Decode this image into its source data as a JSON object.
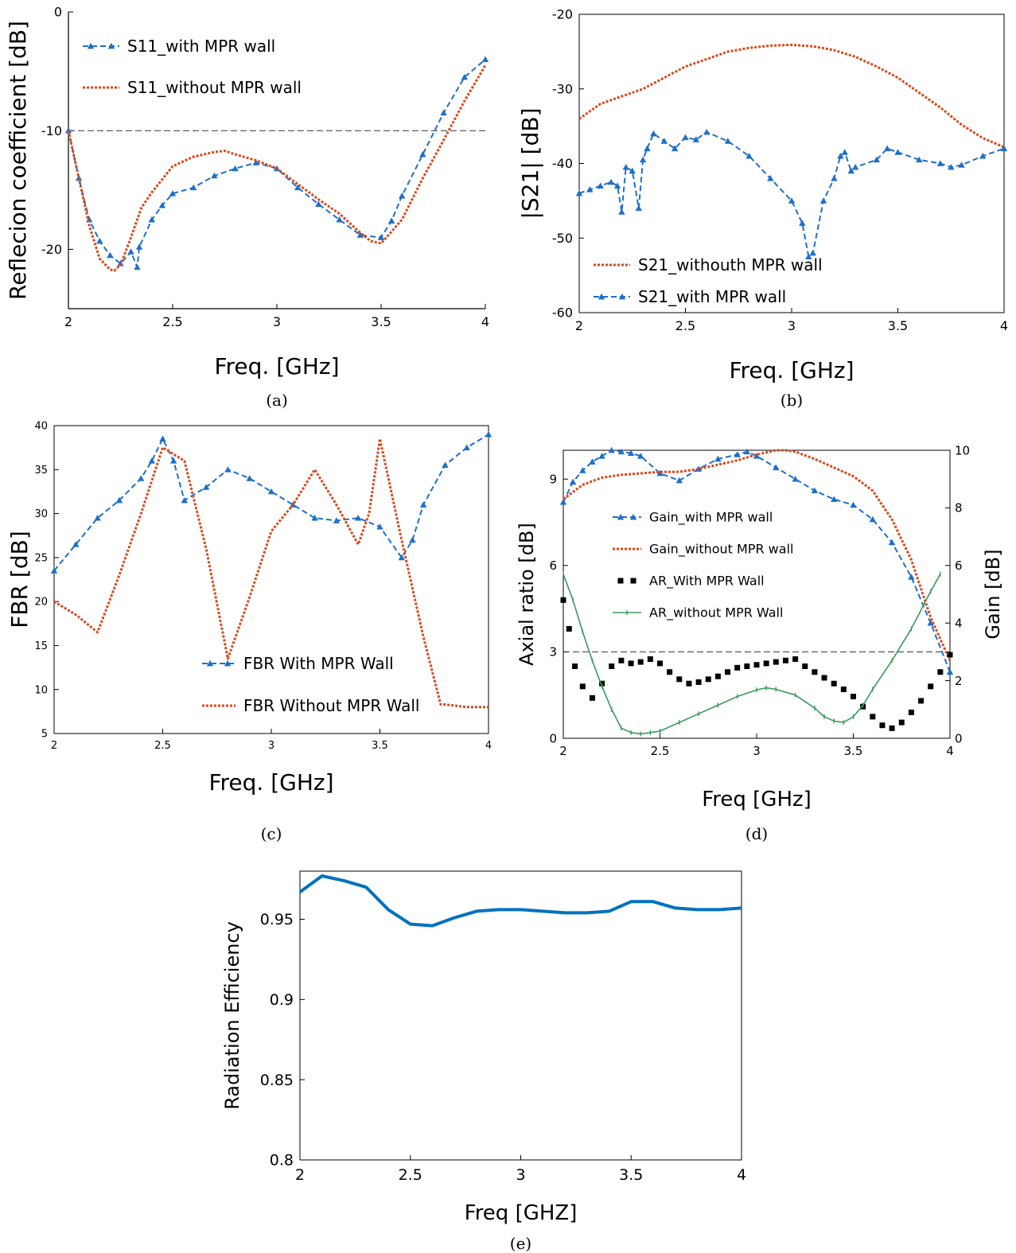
{
  "colors": {
    "blue": "#1f6fc9",
    "orange": "#d9481c",
    "black": "#000000",
    "green": "#3a9a5c",
    "matlab_blue": "#0072bd"
  },
  "chart_data": [
    {
      "id": "a",
      "type": "line",
      "caption": "(a)",
      "xlabel": "Freq. [GHz]",
      "ylabel": "Reflecion coefficient [dB]",
      "xlim": [
        2,
        4
      ],
      "ylim": [
        -25,
        0
      ],
      "xticks": [
        2,
        2.5,
        3,
        3.5,
        4
      ],
      "xtick_labels": [
        "2",
        "2.5",
        "3",
        "3.5",
        "4"
      ],
      "yticks": [
        -20,
        -10,
        0
      ],
      "ytick_labels": [
        "-20",
        "-10",
        "0"
      ],
      "grid": false,
      "legend_position": "top-left",
      "reference_line": {
        "axis": "y",
        "value": -10
      },
      "series": [
        {
          "name": "S11_with MPR wall",
          "style": "dashed-triangle",
          "color": "blue",
          "x": [
            2,
            2.05,
            2.1,
            2.15,
            2.2,
            2.25,
            2.3,
            2.33,
            2.34,
            2.4,
            2.45,
            2.5,
            2.6,
            2.7,
            2.8,
            2.9,
            3.0,
            3.1,
            3.2,
            3.3,
            3.4,
            3.5,
            3.55,
            3.6,
            3.7,
            3.8,
            3.9,
            4.0
          ],
          "y": [
            -10,
            -14,
            -17.5,
            -19.3,
            -20.5,
            -21.2,
            -20.2,
            -21.5,
            -19.8,
            -17.5,
            -16.3,
            -15.3,
            -14.8,
            -13.8,
            -13.2,
            -12.7,
            -13.2,
            -14.8,
            -16.2,
            -17.5,
            -18.8,
            -19,
            -17.6,
            -15.5,
            -12,
            -8.5,
            -5.5,
            -4
          ]
        },
        {
          "name": "S11_without MPR wall",
          "style": "dotted",
          "color": "orange",
          "x": [
            2,
            2.05,
            2.1,
            2.15,
            2.2,
            2.22,
            2.25,
            2.3,
            2.35,
            2.4,
            2.5,
            2.6,
            2.7,
            2.75,
            2.8,
            2.9,
            3.0,
            3.1,
            3.2,
            3.3,
            3.4,
            3.45,
            3.5,
            3.6,
            3.7,
            3.8,
            3.9,
            4.0
          ],
          "y": [
            -10,
            -14,
            -18,
            -20.8,
            -21.7,
            -21.8,
            -21.3,
            -19,
            -16.5,
            -15.2,
            -13,
            -12.2,
            -11.8,
            -11.7,
            -12,
            -12.5,
            -13.2,
            -14.5,
            -15.8,
            -17,
            -18.6,
            -19.3,
            -19.5,
            -17.5,
            -14,
            -10.8,
            -7.5,
            -4.5
          ]
        }
      ]
    },
    {
      "id": "b",
      "type": "line",
      "caption": "(b)",
      "xlabel": "Freq. [GHz]",
      "ylabel": "|S21| [dB]",
      "xlim": [
        2,
        4
      ],
      "ylim": [
        -60,
        -20
      ],
      "xticks": [
        2,
        2.5,
        3,
        3.5,
        4
      ],
      "xtick_labels": [
        "2",
        "2.5",
        "3",
        "3.5",
        "4"
      ],
      "yticks": [
        -60,
        -50,
        -40,
        -30,
        -20
      ],
      "ytick_labels": [
        "-60",
        "-50",
        "-40",
        "-30",
        "-20"
      ],
      "grid": false,
      "legend_position": "bottom-left",
      "series": [
        {
          "name": "S21_withouth MPR wall",
          "style": "dotted",
          "color": "orange",
          "x": [
            2,
            2.1,
            2.2,
            2.3,
            2.4,
            2.5,
            2.6,
            2.7,
            2.8,
            2.9,
            3.0,
            3.1,
            3.2,
            3.3,
            3.4,
            3.5,
            3.6,
            3.7,
            3.8,
            3.9,
            4.0
          ],
          "y": [
            -34,
            -32,
            -31,
            -30,
            -28.5,
            -27,
            -26,
            -25,
            -24.5,
            -24.2,
            -24.1,
            -24.3,
            -24.8,
            -25.7,
            -27,
            -28.5,
            -30.5,
            -32.5,
            -34.8,
            -36.6,
            -37.8
          ]
        },
        {
          "name": "S21_with MPR wall",
          "style": "dashed-triangle",
          "color": "blue",
          "x": [
            2,
            2.05,
            2.1,
            2.15,
            2.18,
            2.2,
            2.22,
            2.25,
            2.28,
            2.3,
            2.32,
            2.35,
            2.4,
            2.45,
            2.5,
            2.55,
            2.6,
            2.7,
            2.8,
            2.9,
            3.0,
            3.05,
            3.08,
            3.1,
            3.15,
            3.2,
            3.23,
            3.25,
            3.28,
            3.3,
            3.4,
            3.45,
            3.5,
            3.6,
            3.7,
            3.75,
            3.8,
            3.9,
            4.0
          ],
          "y": [
            -44,
            -43.5,
            -43,
            -42.5,
            -43,
            -46.5,
            -40.5,
            -41,
            -46,
            -39.5,
            -38,
            -36,
            -37,
            -38,
            -36.5,
            -36.8,
            -35.8,
            -37,
            -39,
            -42,
            -45,
            -48,
            -52.5,
            -52,
            -45,
            -42,
            -39,
            -38.5,
            -41,
            -40.5,
            -39.5,
            -38,
            -38.5,
            -39.5,
            -40,
            -40.5,
            -40.2,
            -39,
            -38
          ]
        }
      ]
    },
    {
      "id": "c",
      "type": "line",
      "caption": "(c)",
      "xlabel": "Freq. [GHz]",
      "ylabel": "FBR [dB]",
      "xlim": [
        2,
        4
      ],
      "ylim": [
        5,
        40
      ],
      "xticks": [
        2,
        2.5,
        3,
        3.5,
        4
      ],
      "xtick_labels": [
        "2",
        "2.5",
        "3",
        "3.5",
        "4"
      ],
      "yticks": [
        5,
        10,
        15,
        20,
        25,
        30,
        35,
        40
      ],
      "ytick_labels": [
        "5",
        "10",
        "15",
        "20",
        "25",
        "30",
        "35",
        "40"
      ],
      "grid": false,
      "legend_position": "bottom-center",
      "series": [
        {
          "name": "FBR With MPR Wall",
          "style": "dashed-triangle",
          "color": "blue",
          "x": [
            2,
            2.1,
            2.2,
            2.3,
            2.4,
            2.45,
            2.5,
            2.55,
            2.6,
            2.7,
            2.8,
            2.9,
            3.0,
            3.1,
            3.2,
            3.3,
            3.4,
            3.5,
            3.6,
            3.65,
            3.7,
            3.8,
            3.9,
            4.0
          ],
          "y": [
            23.5,
            26.5,
            29.5,
            31.5,
            34,
            36,
            38.5,
            36,
            31.5,
            33,
            35,
            34,
            32.5,
            31,
            29.5,
            29.2,
            29.5,
            28.5,
            25,
            27,
            31,
            35.5,
            37.5,
            39
          ]
        },
        {
          "name": "FBR Without MPR Wall",
          "style": "dotted",
          "color": "orange",
          "x": [
            2,
            2.1,
            2.2,
            2.3,
            2.4,
            2.5,
            2.6,
            2.7,
            2.8,
            2.9,
            3.0,
            3.1,
            3.2,
            3.3,
            3.4,
            3.45,
            3.5,
            3.6,
            3.7,
            3.78,
            3.8,
            3.9,
            4.0
          ],
          "y": [
            20,
            18.5,
            16.5,
            23,
            30,
            37.5,
            36,
            26,
            13.5,
            20.5,
            28,
            31,
            35,
            31,
            26.5,
            30,
            38.5,
            27,
            16,
            8.3,
            8.3,
            8,
            8
          ]
        }
      ]
    },
    {
      "id": "d",
      "type": "line",
      "caption": "(d)",
      "xlabel": "Freq [GHz]",
      "ylabel": "Axial ratio [dB]",
      "ylabel_right": "Gain [dB]",
      "xlim": [
        2,
        4
      ],
      "ylim": [
        0,
        10
      ],
      "ylim_right": [
        0,
        10
      ],
      "xticks": [
        2,
        2.5,
        3,
        3.5,
        4
      ],
      "xtick_labels": [
        "2",
        "2.5",
        "3",
        "3.5",
        "4"
      ],
      "yticks": [
        0,
        3,
        6,
        9
      ],
      "ytick_labels": [
        "0",
        "3",
        "6",
        "9"
      ],
      "yticks_right": [
        0,
        2,
        4,
        6,
        8,
        10
      ],
      "ytick_labels_right": [
        "0",
        "2",
        "4",
        "6",
        "8",
        "10"
      ],
      "grid": false,
      "legend_position": "center-left",
      "reference_line": {
        "axis": "y",
        "value": 3
      },
      "series": [
        {
          "name": "Gain_with MPR wall",
          "axis": "right",
          "style": "dashed-triangle",
          "color": "blue",
          "x": [
            2,
            2.05,
            2.1,
            2.15,
            2.2,
            2.25,
            2.3,
            2.35,
            2.4,
            2.5,
            2.6,
            2.7,
            2.8,
            2.9,
            2.95,
            3.0,
            3.1,
            3.2,
            3.3,
            3.4,
            3.5,
            3.6,
            3.7,
            3.8,
            3.9,
            4.0
          ],
          "y": [
            8.2,
            8.9,
            9.3,
            9.6,
            9.8,
            10,
            9.95,
            9.9,
            9.8,
            9.2,
            8.95,
            9.35,
            9.7,
            9.85,
            9.95,
            9.8,
            9.4,
            9,
            8.6,
            8.3,
            8.1,
            7.6,
            6.8,
            5.6,
            4,
            2.3
          ]
        },
        {
          "name": "Gain_without MPR wall",
          "axis": "right",
          "style": "dotted",
          "color": "orange",
          "x": [
            2,
            2.1,
            2.2,
            2.3,
            2.4,
            2.5,
            2.6,
            2.7,
            2.8,
            2.9,
            3.0,
            3.1,
            3.15,
            3.2,
            3.3,
            3.4,
            3.5,
            3.6,
            3.7,
            3.8,
            3.9,
            4.0
          ],
          "y": [
            8.3,
            8.8,
            9.05,
            9.15,
            9.2,
            9.25,
            9.25,
            9.35,
            9.5,
            9.65,
            9.85,
            10,
            10,
            9.95,
            9.7,
            9.4,
            9.1,
            8.6,
            7.6,
            6.2,
            4.2,
            2.7
          ]
        },
        {
          "name": "AR_With MPR Wall",
          "axis": "left",
          "style": "thick-dotted",
          "color": "black",
          "x": [
            2,
            2.03,
            2.06,
            2.1,
            2.15,
            2.2,
            2.25,
            2.3,
            2.35,
            2.4,
            2.45,
            2.5,
            2.55,
            2.6,
            2.65,
            2.7,
            2.75,
            2.8,
            2.85,
            2.9,
            2.95,
            3.0,
            3.05,
            3.1,
            3.15,
            3.2,
            3.25,
            3.3,
            3.35,
            3.4,
            3.45,
            3.5,
            3.55,
            3.6,
            3.65,
            3.7,
            3.75,
            3.8,
            3.85,
            3.9,
            3.95,
            4.0
          ],
          "y": [
            4.8,
            3.8,
            2.5,
            1.8,
            1.4,
            1.9,
            2.5,
            2.7,
            2.6,
            2.65,
            2.75,
            2.6,
            2.3,
            2.05,
            1.9,
            1.95,
            2.05,
            2.15,
            2.3,
            2.45,
            2.5,
            2.55,
            2.6,
            2.65,
            2.7,
            2.75,
            2.5,
            2.3,
            2.1,
            1.9,
            1.7,
            1.45,
            1.1,
            0.75,
            0.45,
            0.35,
            0.55,
            0.9,
            1.3,
            1.8,
            2.3,
            2.9
          ]
        },
        {
          "name": "AR_without MPR Wall",
          "axis": "left",
          "style": "solid-tick",
          "color": "green",
          "x": [
            2,
            2.05,
            2.1,
            2.15,
            2.2,
            2.25,
            2.3,
            2.35,
            2.4,
            2.45,
            2.5,
            2.6,
            2.7,
            2.8,
            2.9,
            3.0,
            3.05,
            3.1,
            3.2,
            3.3,
            3.35,
            3.4,
            3.45,
            3.5,
            3.55,
            3.6,
            3.7,
            3.8,
            3.9,
            3.95
          ],
          "y": [
            5.7,
            4.8,
            3.7,
            2.7,
            1.8,
            1.0,
            0.35,
            0.2,
            0.15,
            0.2,
            0.25,
            0.55,
            0.85,
            1.15,
            1.45,
            1.68,
            1.75,
            1.7,
            1.5,
            1.05,
            0.75,
            0.6,
            0.55,
            0.75,
            1.15,
            1.7,
            2.7,
            3.8,
            5.1,
            5.7
          ]
        }
      ]
    },
    {
      "id": "e",
      "type": "line",
      "caption": "(e)",
      "xlabel": "Freq [GHZ]",
      "ylabel": "Radiation Efficiency",
      "xlim": [
        2,
        4
      ],
      "ylim": [
        0.8,
        0.98
      ],
      "xticks": [
        2,
        2.5,
        3,
        3.5,
        4
      ],
      "xtick_labels": [
        "2",
        "2.5",
        "3",
        "3.5",
        "4"
      ],
      "yticks": [
        0.8,
        0.85,
        0.9,
        0.95
      ],
      "ytick_labels": [
        "0.8",
        "0.85",
        "0.9",
        "0.95"
      ],
      "grid": false,
      "series": [
        {
          "style": "solid",
          "color": "matlab_blue",
          "x": [
            2,
            2.1,
            2.2,
            2.3,
            2.4,
            2.5,
            2.6,
            2.7,
            2.8,
            2.9,
            3.0,
            3.1,
            3.2,
            3.3,
            3.4,
            3.5,
            3.6,
            3.7,
            3.8,
            3.9,
            4.0
          ],
          "y": [
            0.967,
            0.977,
            0.974,
            0.97,
            0.956,
            0.947,
            0.946,
            0.951,
            0.955,
            0.956,
            0.956,
            0.955,
            0.954,
            0.954,
            0.955,
            0.961,
            0.961,
            0.957,
            0.956,
            0.956,
            0.957
          ]
        }
      ]
    }
  ]
}
